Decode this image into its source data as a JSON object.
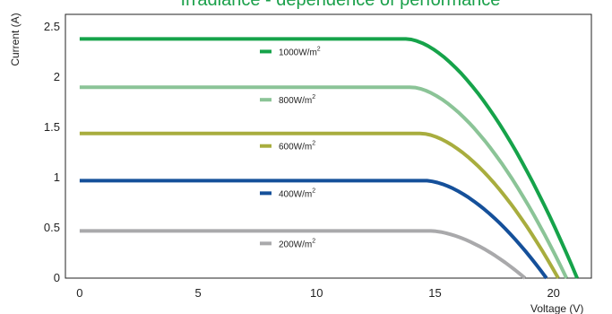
{
  "chart_data": {
    "type": "line",
    "title": "Irradiance - dependence of performance",
    "title_color": "#1aa04a",
    "xlabel": "Voltage (V)",
    "ylabel": "Current (A)",
    "xlim": [
      -0.6,
      21.6
    ],
    "ylim": [
      0,
      2.5
    ],
    "xticks": [
      0,
      5,
      10,
      15,
      20
    ],
    "yticks": [
      0,
      0.5,
      1,
      1.5,
      2,
      2.5
    ],
    "xtick_labels": [
      "0",
      "5",
      "10",
      "15",
      "20"
    ],
    "ytick_labels": [
      "0",
      "0.5",
      "1",
      "1.5",
      "2",
      "2.5"
    ],
    "grid": false,
    "legend_placement": "inline-center",
    "legend_unit_base": "W/m",
    "legend_unit_sup": "2",
    "series": [
      {
        "name": "1000W/m2",
        "label_value": "1000",
        "color": "#16a34a",
        "isc": 2.38,
        "vknee": 13.8,
        "voc": 21.0
      },
      {
        "name": "800W/m2",
        "label_value": "800",
        "color": "#8bc497",
        "isc": 1.9,
        "vknee": 14.0,
        "voc": 20.55
      },
      {
        "name": "600W/m2",
        "label_value": "600",
        "color": "#a8ad3e",
        "isc": 1.44,
        "vknee": 14.4,
        "voc": 20.2
      },
      {
        "name": "400W/m2",
        "label_value": "400",
        "color": "#15509a",
        "isc": 0.97,
        "vknee": 14.6,
        "voc": 19.7
      },
      {
        "name": "200W/m2",
        "label_value": "200",
        "color": "#a9a9ab",
        "isc": 0.47,
        "vknee": 14.8,
        "voc": 18.8
      }
    ]
  }
}
